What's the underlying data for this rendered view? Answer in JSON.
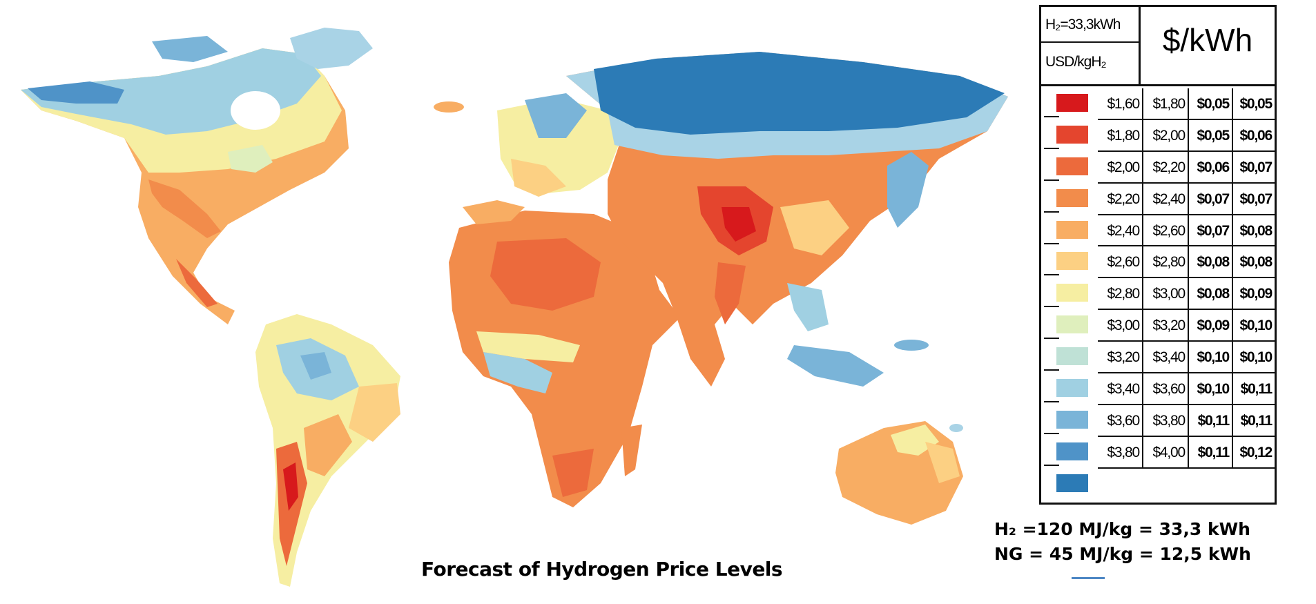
{
  "caption": "Forecast of Hydrogen Price Levels",
  "legend": {
    "header_h2": "H₂=33,3kWh",
    "header_usd": "USD/kgH₂",
    "header_unit": "$/kWh",
    "rows": [
      {
        "color": "#d7191c",
        "from": "$1,60",
        "to": "$1,80",
        "kwh_from": "$0,05",
        "kwh_to": "$0,05"
      },
      {
        "color": "#e4452e",
        "from": "$1,80",
        "to": "$2,00",
        "kwh_from": "$0,05",
        "kwh_to": "$0,06"
      },
      {
        "color": "#ec6a3c",
        "from": "$2,00",
        "to": "$2,20",
        "kwh_from": "$0,06",
        "kwh_to": "$0,07"
      },
      {
        "color": "#f28c4b",
        "from": "$2,20",
        "to": "$2,40",
        "kwh_from": "$0,07",
        "kwh_to": "$0,07"
      },
      {
        "color": "#f8ad63",
        "from": "$2,40",
        "to": "$2,60",
        "kwh_from": "$0,07",
        "kwh_to": "$0,08"
      },
      {
        "color": "#fcd083",
        "from": "$2,60",
        "to": "$2,80",
        "kwh_from": "$0,08",
        "kwh_to": "$0,08"
      },
      {
        "color": "#f6eea2",
        "from": "$2,80",
        "to": "$3,00",
        "kwh_from": "$0,08",
        "kwh_to": "$0,09"
      },
      {
        "color": "#dfefbd",
        "from": "$3,00",
        "to": "$3,20",
        "kwh_from": "$0,09",
        "kwh_to": "$0,10"
      },
      {
        "color": "#bfe1d6",
        "from": "$3,20",
        "to": "$3,40",
        "kwh_from": "$0,10",
        "kwh_to": "$0,10"
      },
      {
        "color": "#a0d0e2",
        "from": "$3,40",
        "to": "$3,60",
        "kwh_from": "$0,10",
        "kwh_to": "$0,11"
      },
      {
        "color": "#7ab4d8",
        "from": "$3,60",
        "to": "$3,80",
        "kwh_from": "$0,11",
        "kwh_to": "$0,11"
      },
      {
        "color": "#4f93c8",
        "from": "$3,80",
        "to": "$4,00",
        "kwh_from": "$0,11",
        "kwh_to": "$0,12"
      },
      {
        "color": "#2c7bb6",
        "from": "",
        "to": "",
        "kwh_from": "",
        "kwh_to": ""
      }
    ]
  },
  "conversions": {
    "h2": "H₂  =120 MJ/kg = 33,3 kWh",
    "ng": "NG =  45 MJ/kg = 12,5 kWh"
  },
  "colors": {
    "deep_blue": "#2c7bb6",
    "mid_blue": "#6aa7d4",
    "light_blue": "#a9d3e6",
    "pale": "#e9f2c6",
    "yellow": "#f6eea2",
    "light_orange": "#fcc67c",
    "orange": "#f4904d",
    "deep_orange": "#ea6a3a",
    "red": "#d7301f"
  }
}
